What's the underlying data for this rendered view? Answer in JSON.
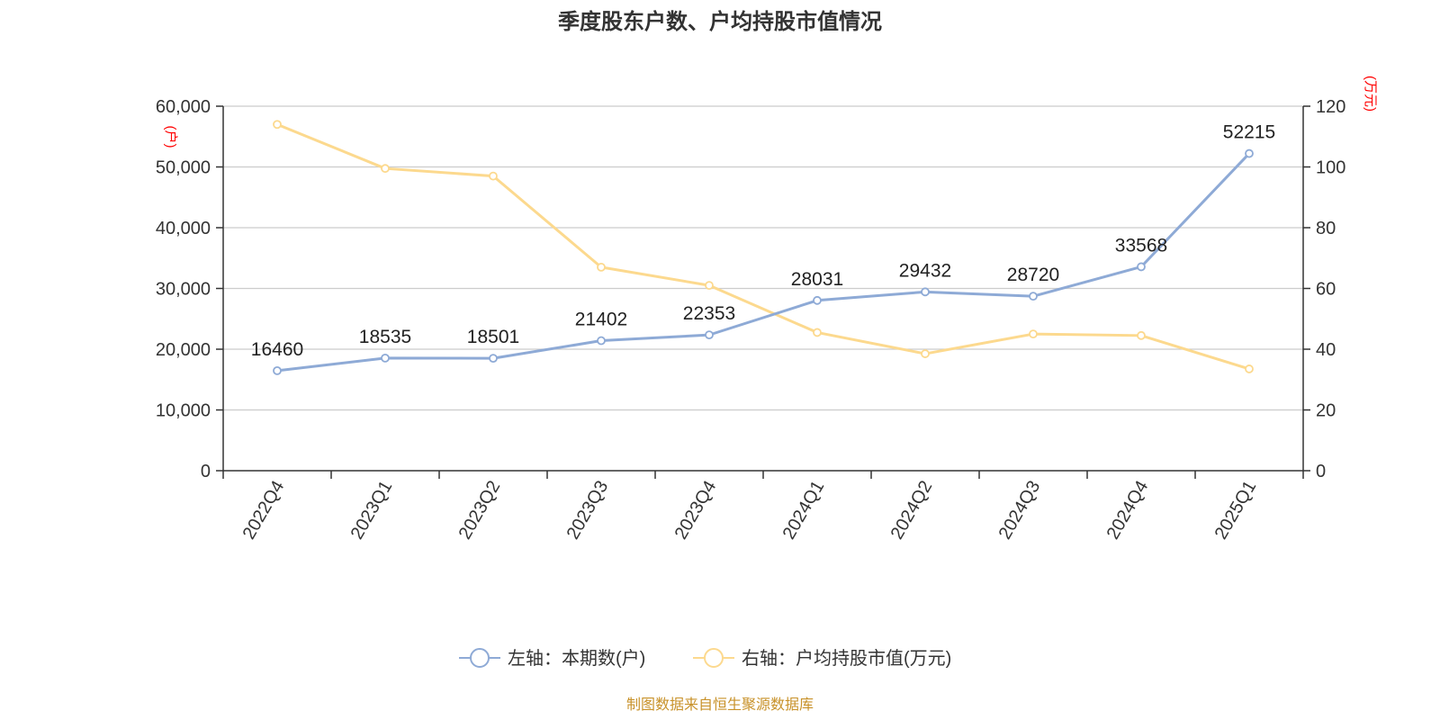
{
  "title": "季度股东户数、户均持股市值情况",
  "source": "制图数据来自恒生聚源数据库",
  "chart_data": {
    "type": "line",
    "categories": [
      "2022Q4",
      "2023Q1",
      "2023Q2",
      "2023Q3",
      "2023Q4",
      "2024Q1",
      "2024Q2",
      "2024Q3",
      "2024Q4",
      "2025Q1"
    ],
    "left_axis": {
      "unit": "(户)",
      "ylim": [
        0,
        60000
      ],
      "ticks": [
        "0",
        "10,000",
        "20,000",
        "30,000",
        "40,000",
        "50,000",
        "60,000"
      ]
    },
    "right_axis": {
      "unit": "(万元)",
      "ylim": [
        0,
        120
      ],
      "ticks": [
        "0",
        "20",
        "40",
        "60",
        "80",
        "100",
        "120"
      ]
    },
    "grid": true,
    "legend_position": "bottom",
    "series": [
      {
        "name": "左轴：本期数(户)",
        "axis": "left",
        "color": "#8eaad6",
        "values": [
          16460,
          18535,
          18501,
          21402,
          22353,
          28031,
          29432,
          28720,
          33568,
          52215
        ],
        "show_labels": true
      },
      {
        "name": "右轴：户均持股市值(万元)",
        "axis": "right",
        "color": "#fcd98e",
        "values": [
          114,
          99.5,
          97,
          67,
          61,
          45.5,
          38.5,
          45,
          44.5,
          33.5
        ],
        "show_labels": false
      }
    ]
  }
}
